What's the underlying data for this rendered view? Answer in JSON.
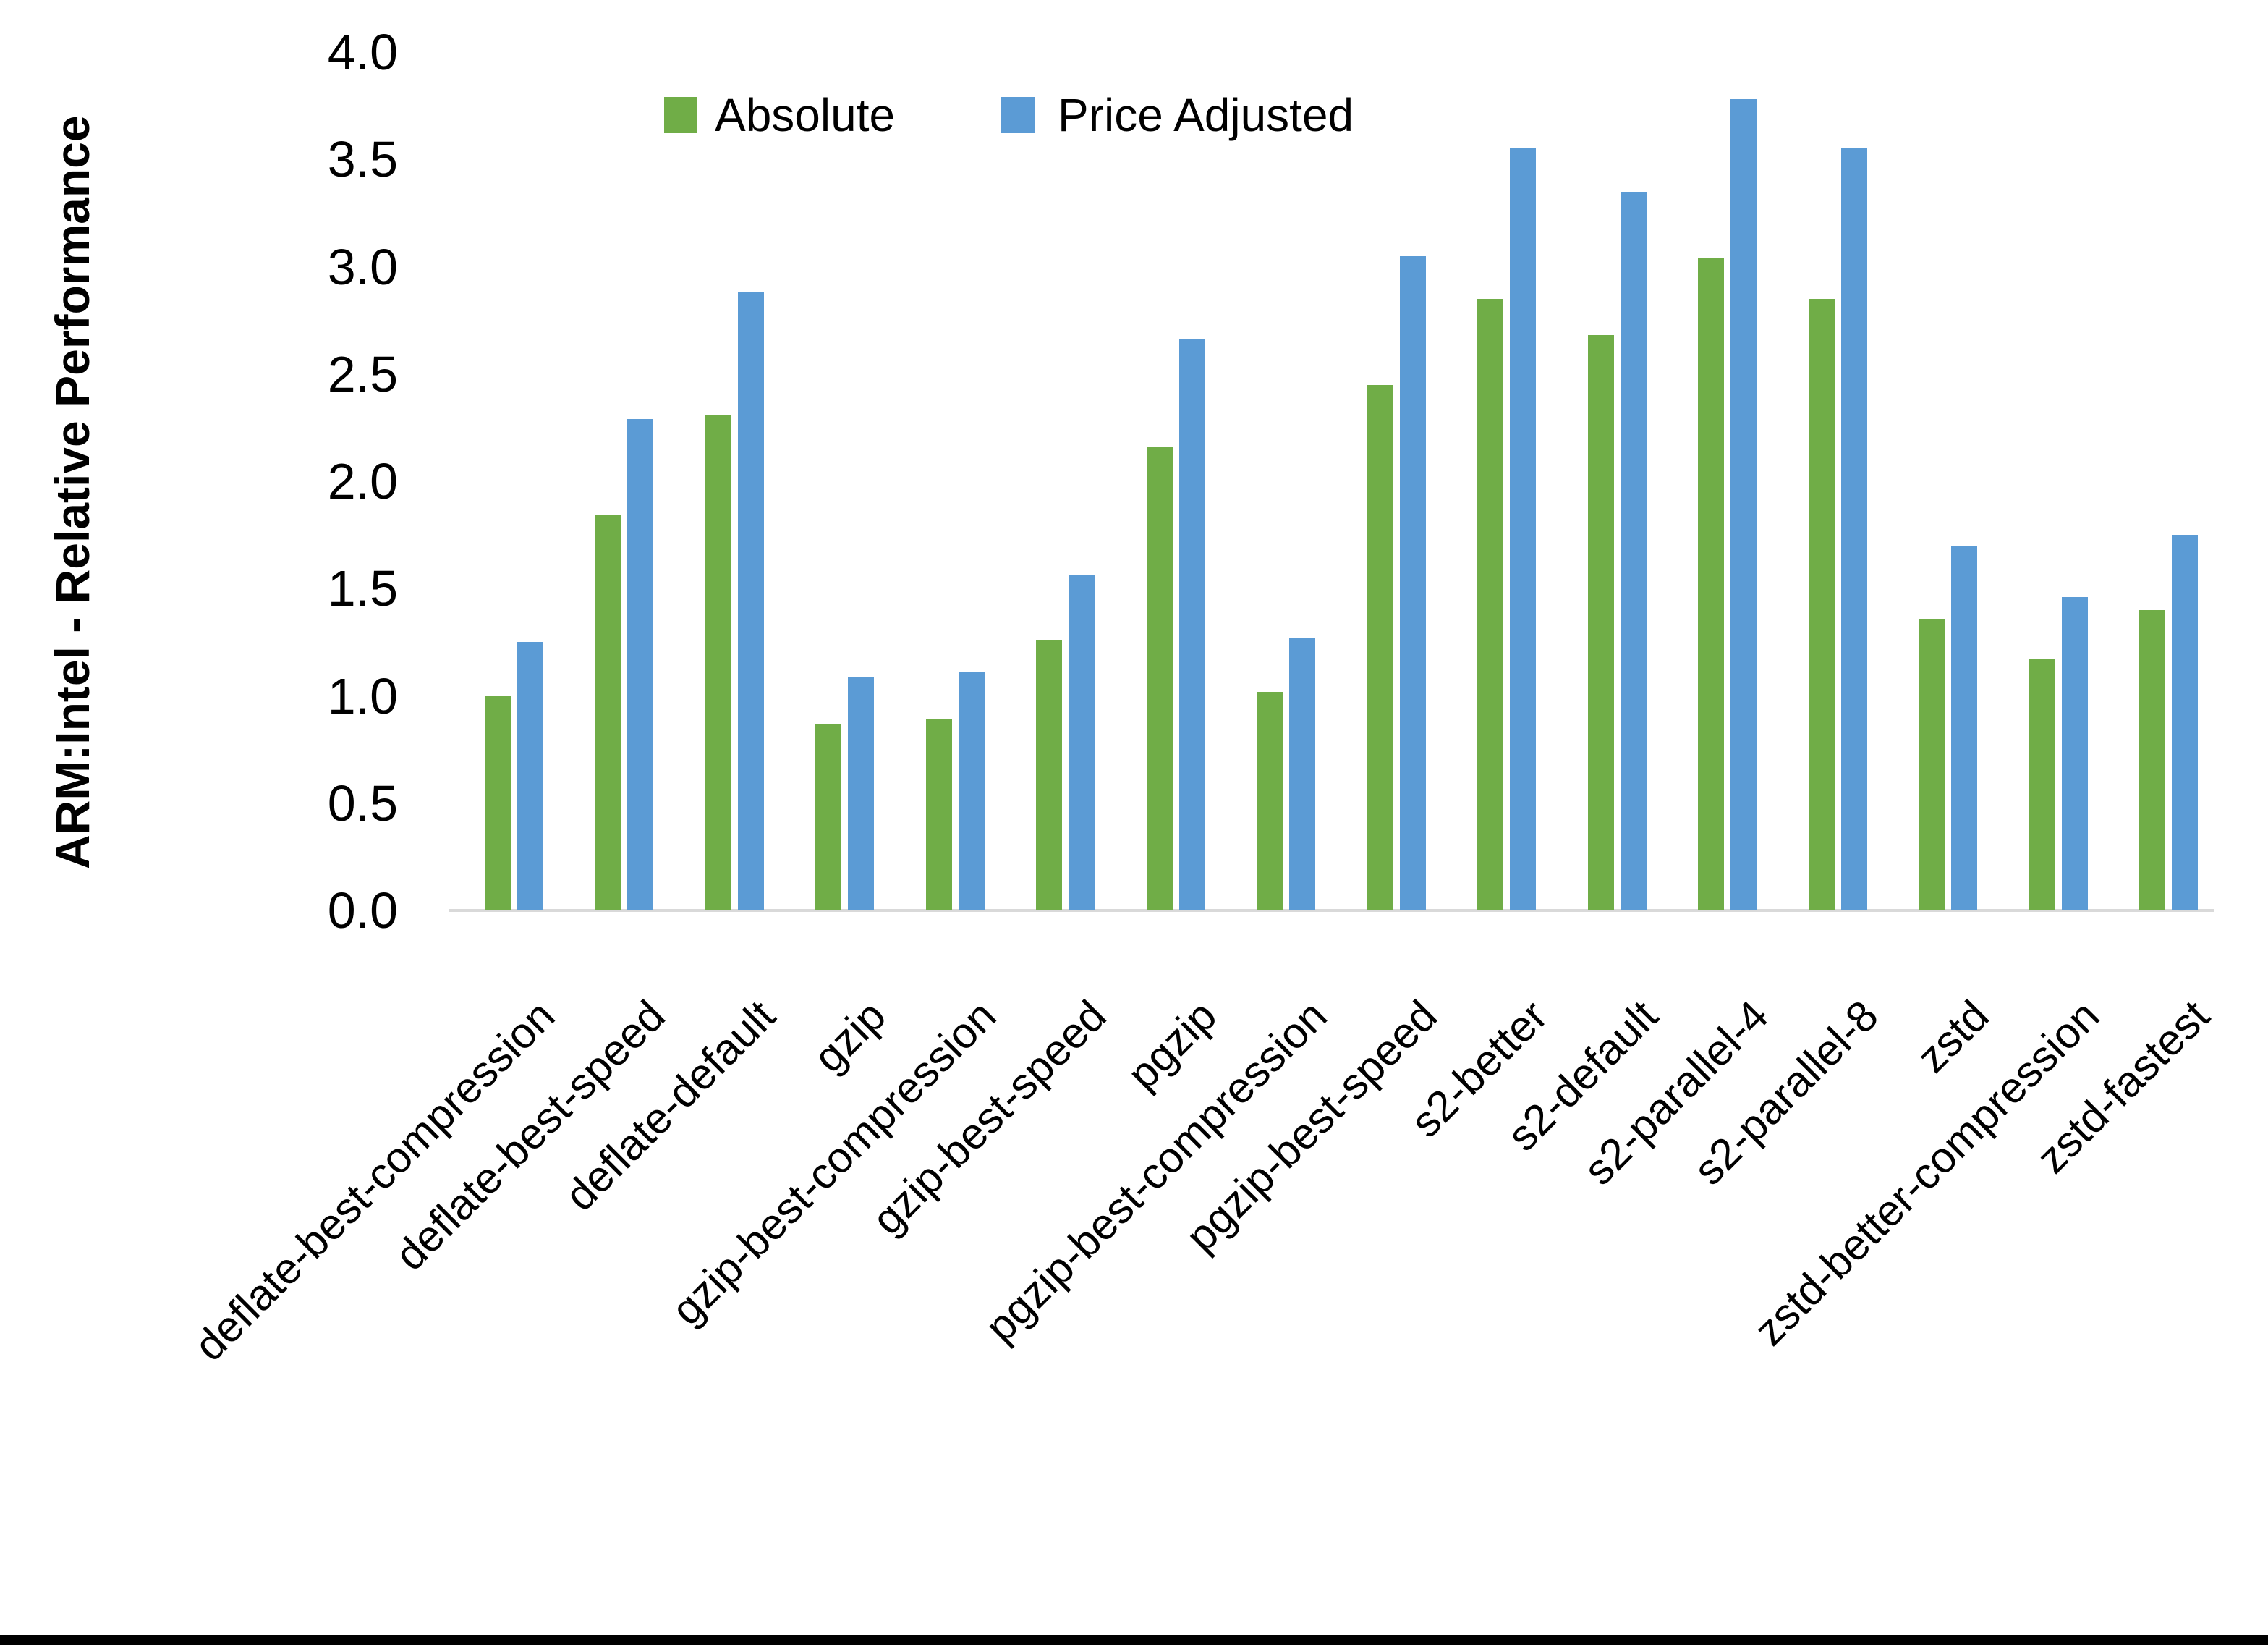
{
  "page": {
    "background": "#FFFFFF",
    "text_color": "#000000",
    "axis_line_color": "#D9D9D9",
    "bottom_border_color": "#000000"
  },
  "chart_data": {
    "type": "bar",
    "title": "",
    "xlabel": "",
    "ylabel": "ARM:Intel - Relative Performance",
    "ylim": [
      0.0,
      4.0
    ],
    "ytick_step": 0.5,
    "ytick_decimals": 1,
    "grid": false,
    "legend_position": "top",
    "categories": [
      "deflate-best-compression",
      "deflate-best-speed",
      "deflate-default",
      "gzip",
      "gzip-best-compression",
      "gzip-best-speed",
      "pgzip",
      "pgzip-best-compression",
      "pgzip-best-speed",
      "s2-better",
      "s2-default",
      "s2-parallel-4",
      "s2-parallel-8",
      "zstd",
      "zstd-better-compression",
      "zstd-fastest"
    ],
    "series": [
      {
        "name": "Absolute",
        "color": "#70AD47",
        "values": [
          1.0,
          1.84,
          2.31,
          0.87,
          0.89,
          1.26,
          2.16,
          1.02,
          2.45,
          2.85,
          2.68,
          3.04,
          2.85,
          1.36,
          1.17,
          1.4
        ]
      },
      {
        "name": "Price Adjusted",
        "color": "#5B9BD5",
        "values": [
          1.25,
          2.29,
          2.88,
          1.09,
          1.11,
          1.56,
          2.66,
          1.27,
          3.05,
          3.55,
          3.35,
          3.78,
          3.55,
          1.7,
          1.46,
          1.75
        ]
      }
    ]
  }
}
